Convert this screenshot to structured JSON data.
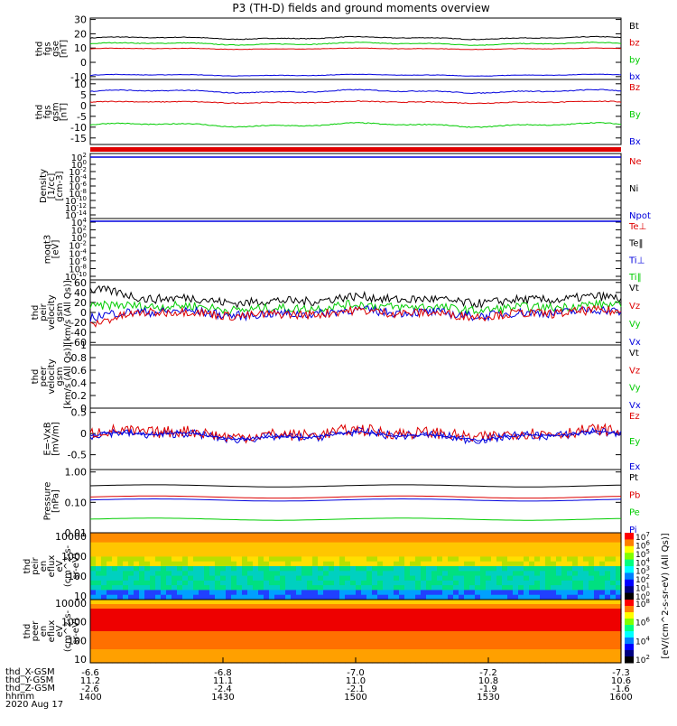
{
  "title": "P3 (TH-D) fields and ground moments overview",
  "chart_data": [
    {
      "type": "line",
      "id": "fgs-gse",
      "ylabel": [
        "thd",
        "fgs",
        "gse",
        "[nT]"
      ],
      "yticks": [
        30,
        20,
        10,
        0,
        -10
      ],
      "ylim": [
        -12,
        31
      ],
      "xlim": [
        14.0,
        16.0
      ],
      "series": [
        {
          "name": "Bt",
          "color": "#000000",
          "mean": 17,
          "wiggle": 1.2
        },
        {
          "name": "bz",
          "color": "#dd0000",
          "mean": 9.5,
          "wiggle": 0.6
        },
        {
          "name": "by",
          "color": "#00cc00",
          "mean": 13,
          "wiggle": 1.2
        },
        {
          "name": "bx",
          "color": "#0000dd",
          "mean": -9,
          "wiggle": 0.8
        }
      ]
    },
    {
      "type": "line",
      "id": "fgs-gsm",
      "ylabel": [
        "thd",
        "fgs",
        "gsm",
        "[nT]"
      ],
      "yticks": [
        10,
        5,
        0,
        -5,
        -10,
        -15
      ],
      "ylim": [
        -18,
        12
      ],
      "xlim": [
        14.0,
        16.0
      ],
      "series": [
        {
          "name": "Bz",
          "color": "#dd0000",
          "mean": 1.5,
          "wiggle": 0.6
        },
        {
          "name": "By",
          "color": "#00cc00",
          "mean": -9,
          "wiggle": 1.3
        },
        {
          "name": "Bx",
          "color": "#0000dd",
          "mean": 6.5,
          "wiggle": 1.0
        }
      ]
    },
    {
      "type": "line",
      "id": "density",
      "ylabel": [
        "Density",
        "[1/cc]",
        "[cm-3]"
      ],
      "yticks": [
        "10^2",
        "10^0",
        "10^-2",
        "10^-4",
        "10^-6",
        "10^-8",
        "10^-10",
        "10^-12",
        "10^-14"
      ],
      "series": [
        {
          "name": "Ne",
          "color": "#dd0000"
        },
        {
          "name": "Ni",
          "color": "#000000"
        },
        {
          "name": "Npot",
          "color": "#0000dd"
        }
      ]
    },
    {
      "type": "line",
      "id": "temperature",
      "ylabel": [
        "moqt3",
        "[eV]"
      ],
      "yticks": [
        "10^4",
        "10^2",
        "10^0",
        "10^-2",
        "10^-4",
        "10^-6",
        "10^-8",
        "10^-10"
      ],
      "series": [
        {
          "name": "Te⊥",
          "color": "#dd0000"
        },
        {
          "name": "Te‖",
          "color": "#000000"
        },
        {
          "name": "Ti⊥",
          "color": "#0000dd"
        },
        {
          "name": "Ti‖",
          "color": "#00cc00"
        }
      ]
    },
    {
      "type": "line",
      "id": "ion-velocity",
      "ylabel": [
        "thd",
        "peir",
        "velocity",
        "gsm",
        "[km/s (All Qs)]"
      ],
      "yticks": [
        60,
        40,
        20,
        0,
        -20,
        -40,
        -60
      ],
      "ylim": [
        -65,
        65
      ],
      "xlim": [
        14.0,
        16.0
      ],
      "series": [
        {
          "name": "Vt",
          "color": "#000000",
          "mean": 25,
          "wiggle": 9
        },
        {
          "name": "Vz",
          "color": "#dd0000",
          "mean": -2,
          "wiggle": 8
        },
        {
          "name": "Vy",
          "color": "#00cc00",
          "mean": 10,
          "wiggle": 8
        },
        {
          "name": "Vx",
          "color": "#0000dd",
          "mean": -1,
          "wiggle": 8
        }
      ]
    },
    {
      "type": "line",
      "id": "electron-velocity",
      "ylabel": [
        "thd",
        "peer",
        "velocity",
        "gsm",
        "[km/s (All Qs)]"
      ],
      "yticks": [
        1.0,
        0.8,
        0.6,
        0.4,
        0.2,
        0.0
      ],
      "ylim": [
        0,
        1
      ],
      "series": [
        {
          "name": "Vt",
          "color": "#000000"
        },
        {
          "name": "Vz",
          "color": "#dd0000"
        },
        {
          "name": "Vy",
          "color": "#00cc00"
        },
        {
          "name": "Vx",
          "color": "#0000dd"
        }
      ]
    },
    {
      "type": "line",
      "id": "e-field",
      "ylabel": [
        "E=-VxB",
        "[mV/m]"
      ],
      "yticks": [
        0.5,
        0.0,
        -0.5
      ],
      "ylim": [
        -0.85,
        0.6
      ],
      "xlim": [
        14.0,
        16.0
      ],
      "series": [
        {
          "name": "Ez",
          "color": "#dd0000",
          "mean": 0.0,
          "wiggle": 0.12
        },
        {
          "name": "Ey",
          "color": "#00cc00",
          "mean": 0.03,
          "wiggle": 0.08
        },
        {
          "name": "Ex",
          "color": "#0000dd",
          "mean": -0.05,
          "wiggle": 0.12
        }
      ]
    },
    {
      "type": "line",
      "id": "pressure",
      "ylabel": [
        "Pressure",
        "[nPa]"
      ],
      "yticks": [
        "1.00",
        "0.10",
        "0.01"
      ],
      "ylim": [
        0.01,
        1.2
      ],
      "xlim": [
        14.0,
        16.0
      ],
      "series": [
        {
          "name": "Pt",
          "color": "#000000",
          "mean": 0.35
        },
        {
          "name": "Pb",
          "color": "#dd0000",
          "mean": 0.15
        },
        {
          "name": "Pe",
          "color": "#00cc00",
          "mean": 0.028
        },
        {
          "name": "Pi",
          "color": "#0000dd",
          "mean": 0.12
        }
      ]
    },
    {
      "type": "heatmap",
      "id": "ion-spectrogram",
      "ylabel": [
        "thd",
        "peir",
        "en",
        "eflux",
        "eV",
        "(cm^2-s-",
        "sr-eV)"
      ],
      "yticks": [
        "10000",
        "1000",
        "100",
        "10"
      ],
      "colorbar": {
        "ticks": [
          "10^7",
          "10^6",
          "10^5",
          "10^4",
          "10^3",
          "10^2",
          "10^1",
          "10^0"
        ],
        "label": "[eV/(cm^2-s-sr-eV) (All Qs)]"
      }
    },
    {
      "type": "heatmap",
      "id": "electron-spectrogram",
      "ylabel": [
        "thd",
        "peer",
        "en",
        "eflux",
        "eV",
        "(cm^2-s-",
        "sr-eV)"
      ],
      "yticks": [
        "10000",
        "1000",
        "100",
        "10"
      ],
      "colorbar": {
        "ticks": [
          "10^8",
          "10^6",
          "10^4",
          "10^2"
        ],
        "label": "[eV/(cm^2-s-sr-eV)]"
      }
    }
  ],
  "x_axis": {
    "ticks": [
      "1400",
      "1430",
      "1500",
      "1530",
      "1600"
    ],
    "rows": [
      {
        "label": "thd_X-GSM",
        "values": [
          "-6.6",
          "-6.8",
          "-7.0",
          "-7.2",
          "-7.3"
        ]
      },
      {
        "label": "thd_Y-GSM",
        "values": [
          "11.2",
          "11.1",
          "11.0",
          "10.8",
          "10.6"
        ]
      },
      {
        "label": "thd_Z-GSM",
        "values": [
          "-2.6",
          "-2.4",
          "-2.1",
          "-1.9",
          "-1.6"
        ]
      },
      {
        "label": "hhmm",
        "values": [
          "1400",
          "1430",
          "1500",
          "1530",
          "1600"
        ]
      }
    ],
    "date": "2020 Aug 17"
  }
}
